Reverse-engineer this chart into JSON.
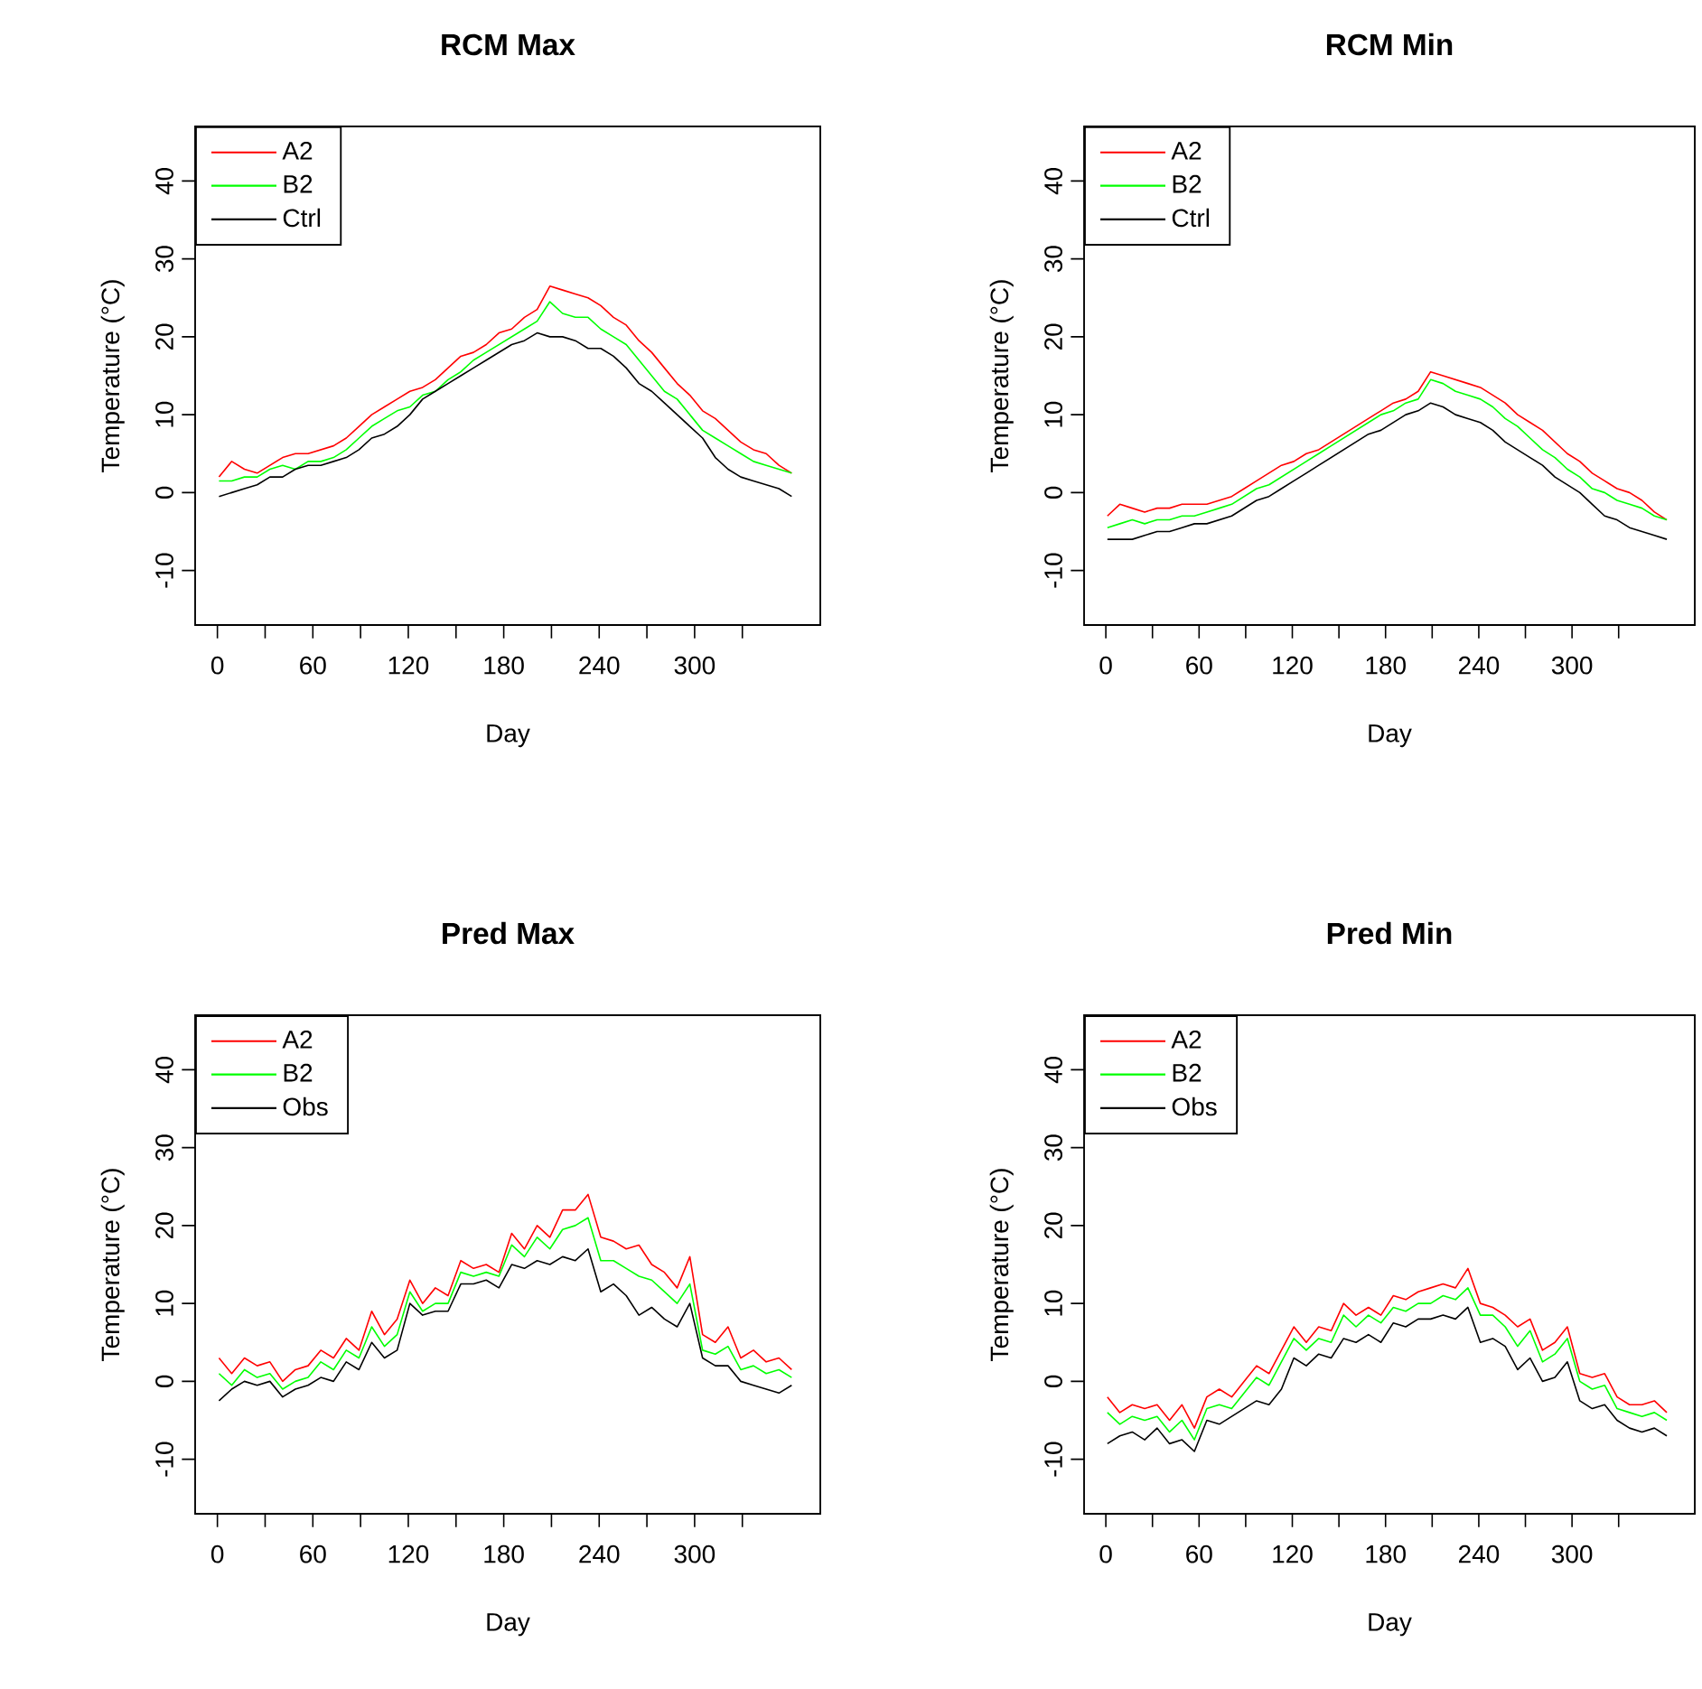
{
  "chart_data": [
    {
      "type": "line",
      "title": "RCM Max",
      "xlabel": "Day",
      "ylabel": "Temperature (°C)",
      "legend": "top left",
      "x": [
        1,
        9,
        17,
        25,
        33,
        41,
        49,
        57,
        65,
        73,
        81,
        89,
        97,
        105,
        113,
        121,
        129,
        137,
        145,
        153,
        161,
        169,
        177,
        185,
        193,
        201,
        209,
        217,
        225,
        233,
        241,
        249,
        257,
        265,
        273,
        281,
        289,
        297,
        305,
        313,
        321,
        329,
        337,
        345,
        353,
        361
      ],
      "xlim": [
        -14,
        379
      ],
      "ylim": [
        -17,
        47
      ],
      "xticks": [
        0,
        {
          "value": 30,
          "label": null
        },
        60,
        {
          "value": 90,
          "label": null
        },
        120,
        {
          "value": 150,
          "label": null
        },
        180,
        {
          "value": 210,
          "label": null
        },
        240,
        {
          "value": 270,
          "label": null
        },
        300,
        {
          "value": 330,
          "label": null
        }
      ],
      "yticks": [
        -10,
        0,
        10,
        20,
        30,
        40
      ],
      "series": [
        {
          "name": "A2",
          "color": "#ff0000",
          "values": [
            2,
            4,
            3,
            2.5,
            3.5,
            4.5,
            5,
            5,
            5.5,
            6,
            7,
            8.5,
            10,
            11,
            12,
            13,
            13.5,
            14.5,
            16,
            17.5,
            18,
            19,
            20.5,
            21,
            22.5,
            23.5,
            26.5,
            26,
            25.5,
            25,
            24,
            22.5,
            21.5,
            19.5,
            18,
            16,
            14,
            12.5,
            10.5,
            9.5,
            8,
            6.5,
            5.5,
            5,
            3.5,
            2.5
          ]
        },
        {
          "name": "B2",
          "color": "#00ff00",
          "values": [
            1.5,
            1.5,
            2,
            2,
            3,
            3.5,
            3,
            4,
            4,
            4.5,
            5.5,
            7,
            8.5,
            9.5,
            10.5,
            11,
            12.5,
            13,
            14.5,
            15.5,
            17,
            18,
            19,
            20,
            21,
            22,
            24.5,
            23,
            22.5,
            22.5,
            21,
            20,
            19,
            17,
            15,
            13,
            12,
            10,
            8,
            7,
            6,
            5,
            4,
            3.5,
            3,
            2.5
          ]
        },
        {
          "name": "Ctrl",
          "color": "#000000",
          "values": [
            -0.5,
            0,
            0.5,
            1,
            2,
            2,
            3,
            3.5,
            3.5,
            4,
            4.5,
            5.5,
            7,
            7.5,
            8.5,
            10,
            12,
            13,
            14,
            15,
            16,
            17,
            18,
            19,
            19.5,
            20.5,
            20,
            20,
            19.5,
            18.5,
            18.5,
            17.5,
            16,
            14,
            13,
            11.5,
            10,
            8.5,
            7,
            4.5,
            3,
            2,
            1.5,
            1,
            0.5,
            -0.5
          ]
        }
      ]
    },
    {
      "type": "line",
      "title": "RCM Min",
      "xlabel": "Day",
      "ylabel": "Temperature (°C)",
      "legend": "top left",
      "x": [
        1,
        9,
        17,
        25,
        33,
        41,
        49,
        57,
        65,
        73,
        81,
        89,
        97,
        105,
        113,
        121,
        129,
        137,
        145,
        153,
        161,
        169,
        177,
        185,
        193,
        201,
        209,
        217,
        225,
        233,
        241,
        249,
        257,
        265,
        273,
        281,
        289,
        297,
        305,
        313,
        321,
        329,
        337,
        345,
        353,
        361
      ],
      "xlim": [
        -14,
        379
      ],
      "ylim": [
        -17,
        47
      ],
      "xticks": [
        0,
        {
          "value": 30,
          "label": null
        },
        60,
        {
          "value": 90,
          "label": null
        },
        120,
        {
          "value": 150,
          "label": null
        },
        180,
        {
          "value": 210,
          "label": null
        },
        240,
        {
          "value": 270,
          "label": null
        },
        300,
        {
          "value": 330,
          "label": null
        }
      ],
      "yticks": [
        -10,
        0,
        10,
        20,
        30,
        40
      ],
      "series": [
        {
          "name": "A2",
          "color": "#ff0000",
          "values": [
            -3,
            -1.5,
            -2,
            -2.5,
            -2,
            -2,
            -1.5,
            -1.5,
            -1.5,
            -1,
            -0.5,
            0.5,
            1.5,
            2.5,
            3.5,
            4,
            5,
            5.5,
            6.5,
            7.5,
            8.5,
            9.5,
            10.5,
            11.5,
            12,
            13,
            15.5,
            15,
            14.5,
            14,
            13.5,
            12.5,
            11.5,
            10,
            9,
            8,
            6.5,
            5,
            4,
            2.5,
            1.5,
            0.5,
            0,
            -1,
            -2.5,
            -3.5
          ]
        },
        {
          "name": "B2",
          "color": "#00ff00",
          "values": [
            -4.5,
            -4,
            -3.5,
            -4,
            -3.5,
            -3.5,
            -3,
            -3,
            -2.5,
            -2,
            -1.5,
            -0.5,
            0.5,
            1,
            2,
            3,
            4,
            5,
            6,
            7,
            8,
            9,
            10,
            10.5,
            11.5,
            12,
            14.5,
            14,
            13,
            12.5,
            12,
            11,
            9.5,
            8.5,
            7,
            5.5,
            4.5,
            3,
            2,
            0.5,
            0,
            -1,
            -1.5,
            -2,
            -3,
            -3.5
          ]
        },
        {
          "name": "Ctrl",
          "color": "#000000",
          "values": [
            -6,
            -6,
            -6,
            -5.5,
            -5,
            -5,
            -4.5,
            -4,
            -4,
            -3.5,
            -3,
            -2,
            -1,
            -0.5,
            0.5,
            1.5,
            2.5,
            3.5,
            4.5,
            5.5,
            6.5,
            7.5,
            8,
            9,
            10,
            10.5,
            11.5,
            11,
            10,
            9.5,
            9,
            8,
            6.5,
            5.5,
            4.5,
            3.5,
            2,
            1,
            0,
            -1.5,
            -3,
            -3.5,
            -4.5,
            -5,
            -5.5,
            -6
          ]
        }
      ]
    },
    {
      "type": "line",
      "title": "Pred Max",
      "xlabel": "Day",
      "ylabel": "Temperature (°C)",
      "legend": "top left",
      "x": [
        1,
        9,
        17,
        25,
        33,
        41,
        49,
        57,
        65,
        73,
        81,
        89,
        97,
        105,
        113,
        121,
        129,
        137,
        145,
        153,
        161,
        169,
        177,
        185,
        193,
        201,
        209,
        217,
        225,
        233,
        241,
        249,
        257,
        265,
        273,
        281,
        289,
        297,
        305,
        313,
        321,
        329,
        337,
        345,
        353,
        361
      ],
      "xlim": [
        -14,
        379
      ],
      "ylim": [
        -17,
        47
      ],
      "xticks": [
        0,
        {
          "value": 30,
          "label": null
        },
        60,
        {
          "value": 90,
          "label": null
        },
        120,
        {
          "value": 150,
          "label": null
        },
        180,
        {
          "value": 210,
          "label": null
        },
        240,
        {
          "value": 270,
          "label": null
        },
        300,
        {
          "value": 330,
          "label": null
        }
      ],
      "yticks": [
        -10,
        0,
        10,
        20,
        30,
        40
      ],
      "series": [
        {
          "name": "A2",
          "color": "#ff0000",
          "values": [
            3,
            1,
            3,
            2,
            2.5,
            0,
            1.5,
            2,
            4,
            3,
            5.5,
            4,
            9,
            6,
            8,
            13,
            10,
            12,
            11,
            15.5,
            14.5,
            15,
            14,
            19,
            17,
            20,
            18.5,
            22,
            22,
            24,
            18.5,
            18,
            17,
            17.5,
            15,
            14,
            12,
            16,
            6,
            5,
            7,
            3,
            4,
            2.5,
            3,
            1.5
          ]
        },
        {
          "name": "B2",
          "color": "#00ff00",
          "values": [
            1,
            -0.5,
            1.5,
            0.5,
            1,
            -1,
            0,
            0.5,
            2.5,
            1.5,
            4,
            3,
            7,
            4.5,
            6,
            11.5,
            9,
            10,
            10,
            14,
            13.5,
            14,
            13.5,
            17.5,
            16,
            18.5,
            17,
            19.5,
            20,
            21,
            15.5,
            15.5,
            14.5,
            13.5,
            13,
            11.5,
            10,
            12.5,
            4,
            3.5,
            4.5,
            1.5,
            2,
            1,
            1.5,
            0.5
          ]
        },
        {
          "name": "Obs",
          "color": "#000000",
          "values": [
            -2.5,
            -1,
            0,
            -0.5,
            0,
            -2,
            -1,
            -0.5,
            0.5,
            0,
            2.5,
            1.5,
            5,
            3,
            4,
            10,
            8.5,
            9,
            9,
            12.5,
            12.5,
            13,
            12,
            15,
            14.5,
            15.5,
            15,
            16,
            15.5,
            17,
            11.5,
            12.5,
            11,
            8.5,
            9.5,
            8,
            7,
            10,
            3,
            2,
            2,
            0,
            -0.5,
            -1,
            -1.5,
            -0.5
          ]
        }
      ]
    },
    {
      "type": "line",
      "title": "Pred Min",
      "xlabel": "Day",
      "ylabel": "Temperature (°C)",
      "legend": "top left",
      "x": [
        1,
        9,
        17,
        25,
        33,
        41,
        49,
        57,
        65,
        73,
        81,
        89,
        97,
        105,
        113,
        121,
        129,
        137,
        145,
        153,
        161,
        169,
        177,
        185,
        193,
        201,
        209,
        217,
        225,
        233,
        241,
        249,
        257,
        265,
        273,
        281,
        289,
        297,
        305,
        313,
        321,
        329,
        337,
        345,
        353,
        361
      ],
      "xlim": [
        -14,
        379
      ],
      "ylim": [
        -17,
        47
      ],
      "xticks": [
        0,
        {
          "value": 30,
          "label": null
        },
        60,
        {
          "value": 90,
          "label": null
        },
        120,
        {
          "value": 150,
          "label": null
        },
        180,
        {
          "value": 210,
          "label": null
        },
        240,
        {
          "value": 270,
          "label": null
        },
        300,
        {
          "value": 330,
          "label": null
        }
      ],
      "yticks": [
        -10,
        0,
        10,
        20,
        30,
        40
      ],
      "series": [
        {
          "name": "A2",
          "color": "#ff0000",
          "values": [
            -2,
            -4,
            -3,
            -3.5,
            -3,
            -5,
            -3,
            -6,
            -2,
            -1,
            -2,
            0,
            2,
            1,
            4,
            7,
            5,
            7,
            6.5,
            10,
            8.5,
            9.5,
            8.5,
            11,
            10.5,
            11.5,
            12,
            12.5,
            12,
            14.5,
            10,
            9.5,
            8.5,
            7,
            8,
            4,
            5,
            7,
            1,
            0.5,
            1,
            -2,
            -3,
            -3,
            -2.5,
            -4
          ]
        },
        {
          "name": "B2",
          "color": "#00ff00",
          "values": [
            -4,
            -5.5,
            -4.5,
            -5,
            -4.5,
            -6.5,
            -5,
            -7.5,
            -3.5,
            -3,
            -3.5,
            -1.5,
            0.5,
            -0.5,
            2.5,
            5.5,
            4,
            5.5,
            5,
            8.5,
            7,
            8.5,
            7.5,
            9.5,
            9,
            10,
            10,
            11,
            10.5,
            12,
            8.5,
            8.5,
            7,
            4.5,
            6.5,
            2.5,
            3.5,
            5.5,
            0,
            -1,
            -0.5,
            -3.5,
            -4,
            -4.5,
            -4,
            -5
          ]
        },
        {
          "name": "Obs",
          "color": "#000000",
          "values": [
            -8,
            -7,
            -6.5,
            -7.5,
            -6,
            -8,
            -7.5,
            -9,
            -5,
            -5.5,
            -4.5,
            -3.5,
            -2.5,
            -3,
            -1,
            3,
            2,
            3.5,
            3,
            5.5,
            5,
            6,
            5,
            7.5,
            7,
            8,
            8,
            8.5,
            8,
            9.5,
            5,
            5.5,
            4.5,
            1.5,
            3,
            0,
            0.5,
            2.5,
            -2.5,
            -3.5,
            -3,
            -5,
            -6,
            -6.5,
            -6,
            -7
          ]
        }
      ]
    }
  ]
}
